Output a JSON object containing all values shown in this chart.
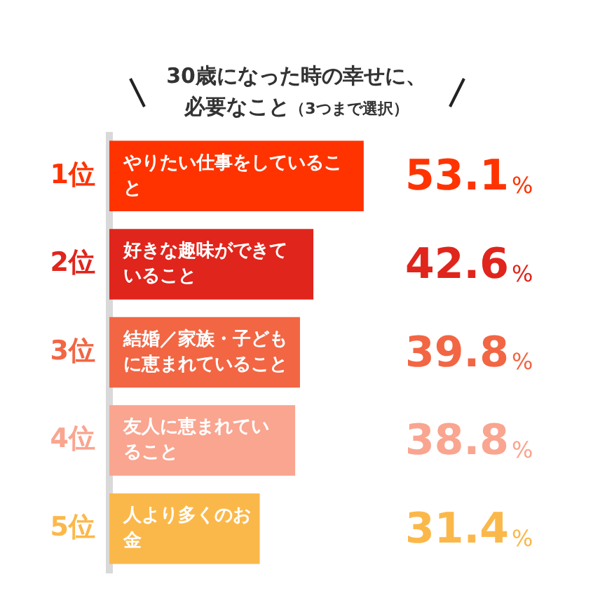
{
  "chart_data": {
    "type": "bar",
    "orientation": "horizontal",
    "title": "30歳になった時の幸せに、必要なこと",
    "subtitle": "（3つまで選択）",
    "categories": [
      "やりたい仕事をしていること",
      "好きな趣味ができていること",
      "結婚／家族・子どもに恵まれていること",
      "友人に恵まれていること",
      "人より多くのお金"
    ],
    "values": [
      53.1,
      42.6,
      39.8,
      38.8,
      31.4
    ],
    "colors": [
      "#ff3300",
      "#e0251c",
      "#f26644",
      "#f9a590",
      "#fbb84a"
    ],
    "value_labels": [
      "53.1%",
      "42.6%",
      "39.8%",
      "38.8%",
      "31.4%"
    ],
    "annotations": [
      "1位",
      "2位",
      "3位",
      "4位",
      "5位"
    ],
    "legend": false
  }
}
